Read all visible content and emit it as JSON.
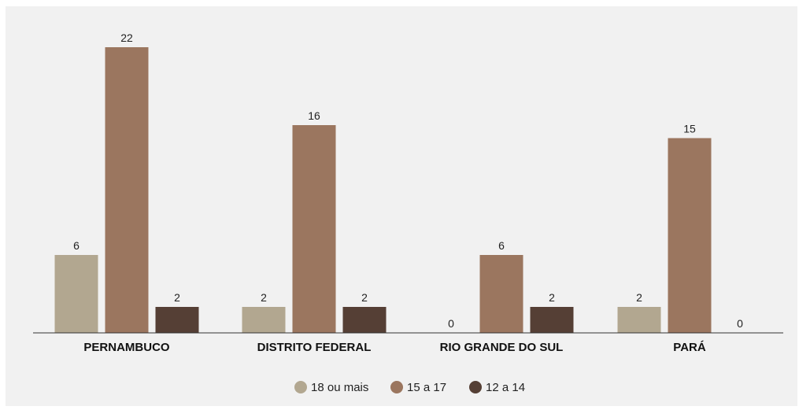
{
  "chart_data": {
    "type": "bar",
    "categories": [
      "PERNAMBUCO",
      "DISTRITO FEDERAL",
      "RIO GRANDE DO SUL",
      "PARÁ"
    ],
    "series": [
      {
        "name": "18 ou mais",
        "values": [
          6,
          2,
          0,
          2
        ],
        "color": "#b2a790"
      },
      {
        "name": "15 a 17",
        "values": [
          22,
          16,
          6,
          15
        ],
        "color": "#9b765f"
      },
      {
        "name": "12 a 14",
        "values": [
          2,
          2,
          2,
          0
        ],
        "color": "#553f35"
      }
    ],
    "title": "",
    "xlabel": "",
    "ylabel": "",
    "ylim": [
      0,
      24
    ],
    "grid": false,
    "legend": "bottom-center",
    "data_labels": true
  }
}
